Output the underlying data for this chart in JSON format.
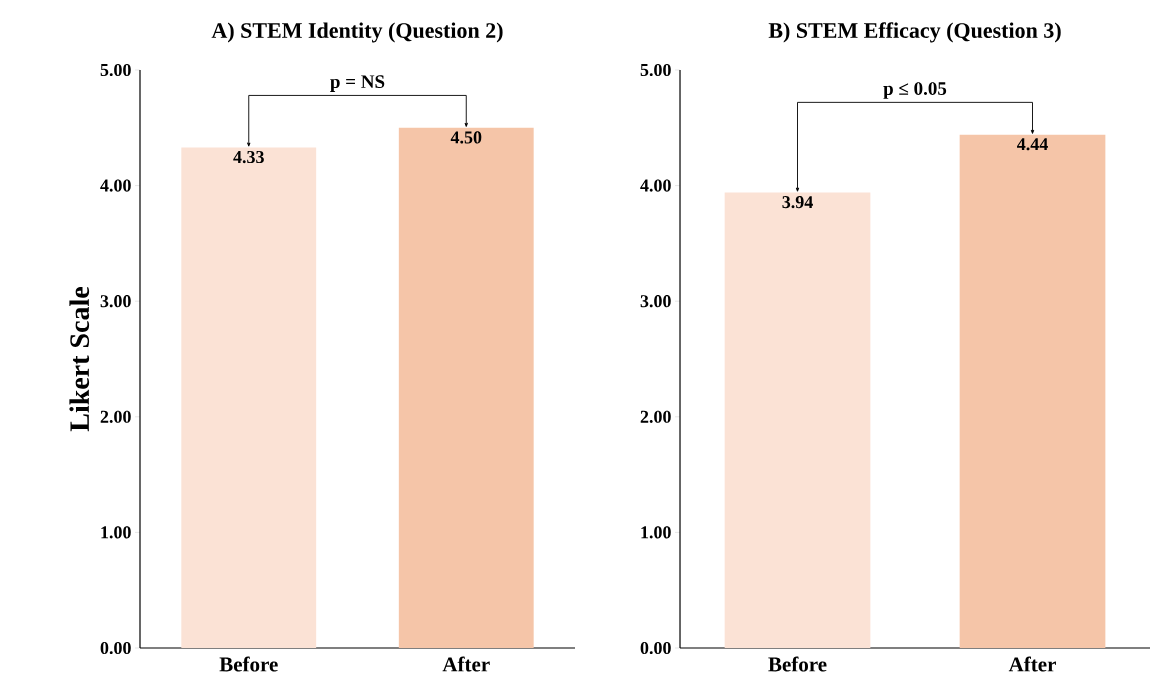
{
  "chart_data": [
    {
      "type": "bar",
      "title": "A) STEM Identity (Question 2)",
      "ylabel": "Likert Scale",
      "categories": [
        "Before",
        "After"
      ],
      "values": [
        4.33,
        4.5
      ],
      "colors": [
        "#fbe2d5",
        "#f5c5a8"
      ],
      "value_labels": [
        "4.33",
        "4.50"
      ],
      "ylim": [
        0,
        5
      ],
      "yticks": [
        {
          "value": 0,
          "label": "0.00"
        },
        {
          "value": 1,
          "label": "1.00"
        },
        {
          "value": 2,
          "label": "2.00"
        },
        {
          "value": 3,
          "label": "3.00"
        },
        {
          "value": 4,
          "label": "4.00"
        },
        {
          "value": 5,
          "label": "5.00"
        }
      ],
      "annotations": [
        "p = NS"
      ]
    },
    {
      "type": "bar",
      "title": "B) STEM Efficacy (Question 3)",
      "categories": [
        "Before",
        "After"
      ],
      "values": [
        3.94,
        4.44
      ],
      "colors": [
        "#fbe2d5",
        "#f5c5a8"
      ],
      "value_labels": [
        "3.94",
        "4.44"
      ],
      "ylim": [
        0,
        5
      ],
      "yticks": [
        {
          "value": 0,
          "label": "0.00"
        },
        {
          "value": 1,
          "label": "1.00"
        },
        {
          "value": 2,
          "label": "2.00"
        },
        {
          "value": 3,
          "label": "3.00"
        },
        {
          "value": 4,
          "label": "4.00"
        },
        {
          "value": 5,
          "label": "5.00"
        }
      ],
      "annotations": [
        "p ≤ 0.05"
      ]
    }
  ]
}
